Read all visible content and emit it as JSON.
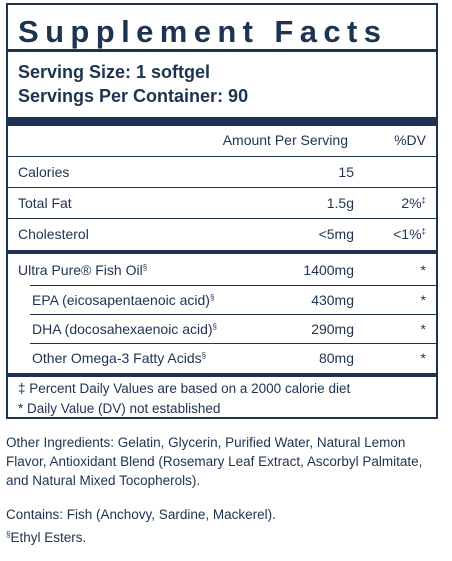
{
  "title": "Supplement Facts",
  "serving_size": "Serving Size: 1 softgel",
  "servings_per_container": "Servings Per Container: 90",
  "header": {
    "amount": "Amount Per Serving",
    "dv": "%DV"
  },
  "rows": [
    {
      "name": "Calories",
      "name_sup": "",
      "amount": "15",
      "dv": "",
      "dv_sup": ""
    },
    {
      "name": "Total Fat",
      "name_sup": "",
      "amount": "1.5g",
      "dv": "2%",
      "dv_sup": "‡"
    },
    {
      "name": "Cholesterol",
      "name_sup": "",
      "amount": "<5mg",
      "dv": "<1%",
      "dv_sup": "‡"
    },
    {
      "name": "Ultra Pure® Fish Oil",
      "name_sup": "§",
      "amount": "1400mg",
      "dv": "*",
      "dv_sup": ""
    },
    {
      "name": "EPA (eicosapentaenoic acid)",
      "name_sup": "§",
      "amount": "430mg",
      "dv": "*",
      "dv_sup": ""
    },
    {
      "name": "DHA (docosahexaenoic acid)",
      "name_sup": "§",
      "amount": "290mg",
      "dv": "*",
      "dv_sup": ""
    },
    {
      "name": "Other Omega-3 Fatty Acids",
      "name_sup": "§",
      "amount": "80mg",
      "dv": "*",
      "dv_sup": ""
    }
  ],
  "footnotes": [
    "‡ Percent Daily Values are based on a 2000 calorie diet",
    "* Daily Value (DV) not established"
  ],
  "other_ingredients": "Other Ingredients: Gelatin, Glycerin, Purified Water, Natural Lemon Flavor, Antioxidant Blend (Rosemary Leaf Extract, Ascorbyl Palmitate, and Natural Mixed Tocopherols).",
  "contains": "Contains: Fish (Anchovy, Sardine, Mackerel).",
  "ethyl_note_mark": "§",
  "ethyl_note": "Ethyl Esters."
}
